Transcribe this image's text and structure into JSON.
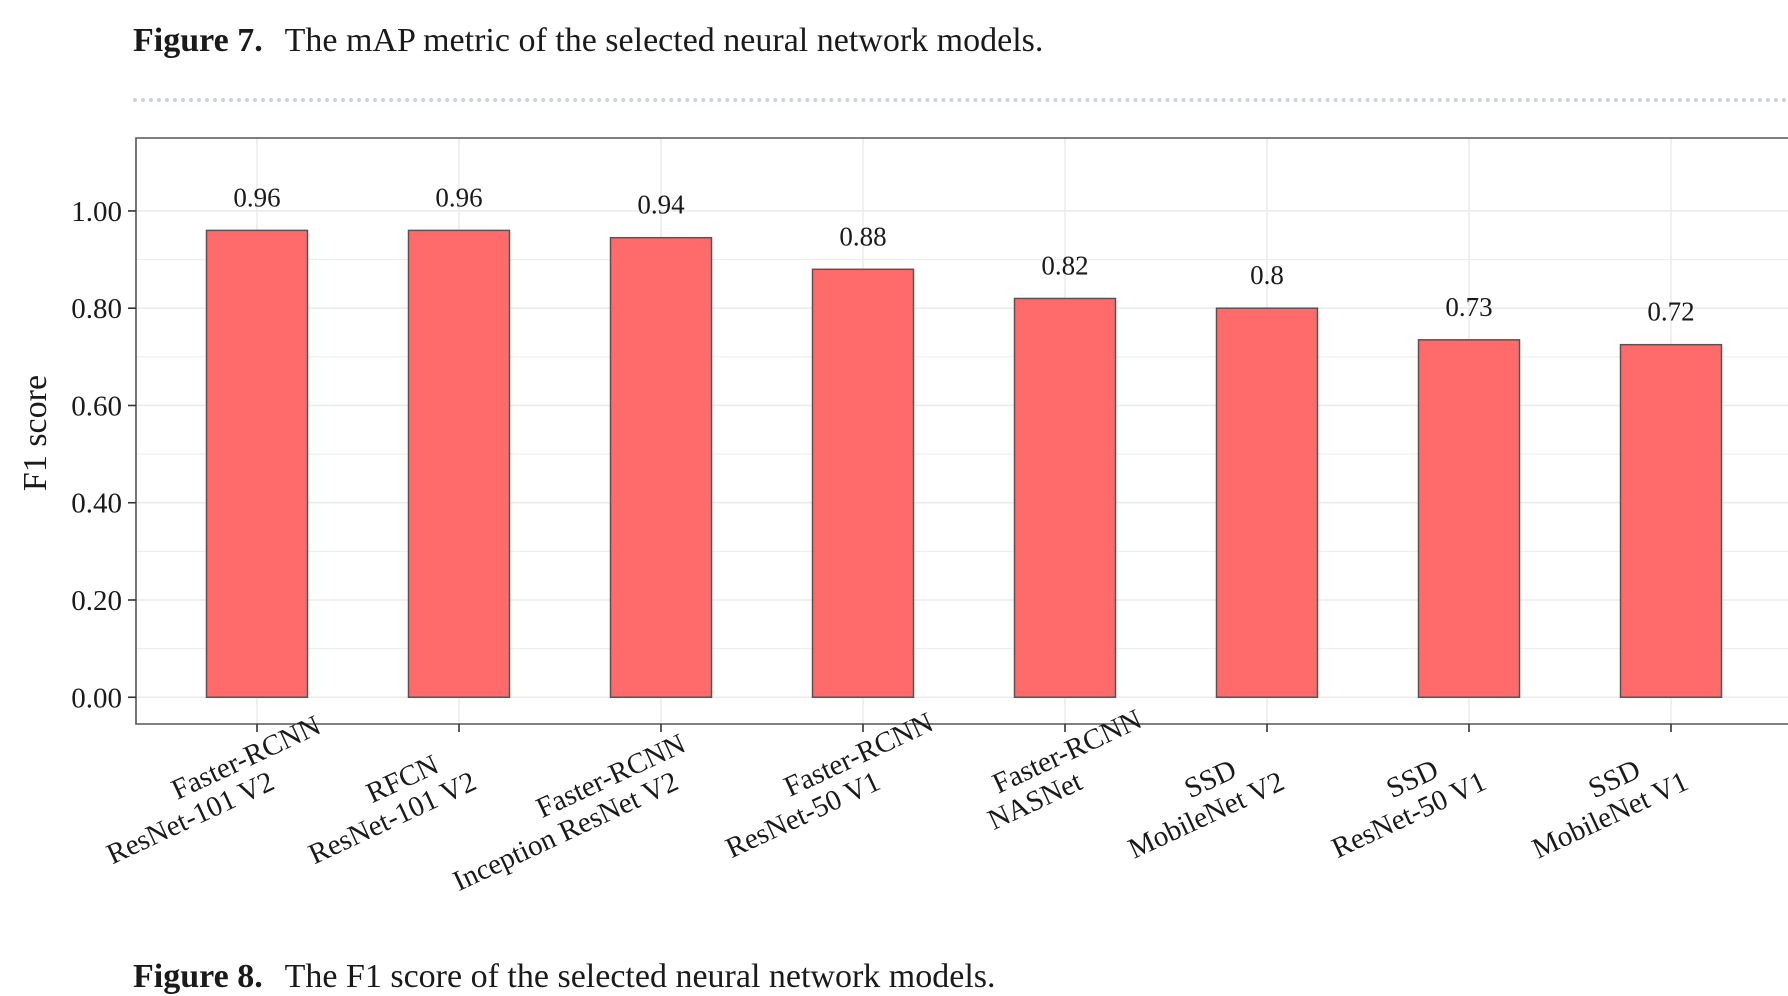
{
  "figure_caption": {
    "label": "Figure 7.",
    "text": "The mAP metric of the selected neural network models."
  },
  "next_caption": {
    "label": "Figure 8.",
    "text": "The F1 score of the selected neural network models."
  },
  "colors": {
    "bar_fill": "#ff6b6b",
    "bar_stroke": "#555555",
    "grid": "#ebebeb",
    "panel_border": "#555555",
    "divider": "#c9d3d8"
  },
  "chart_data": {
    "type": "bar",
    "ylabel": "F1 score",
    "xlabel": "",
    "ylim": [
      -0.055,
      1.15
    ],
    "yticks": [
      0.0,
      0.2,
      0.4,
      0.6,
      0.8,
      1.0
    ],
    "ytick_labels": [
      "0.00",
      "0.20",
      "0.40",
      "0.60",
      "0.80",
      "1.00"
    ],
    "grid": true,
    "legend": "none",
    "categories": [
      [
        "Faster-RCNN",
        "ResNet-101 V2"
      ],
      [
        "RFCN",
        "ResNet-101 V2"
      ],
      [
        "Faster-RCNN",
        "Inception ResNet V2"
      ],
      [
        "Faster-RCNN",
        "ResNet-50 V1"
      ],
      [
        "Faster-RCNN",
        "NASNet"
      ],
      [
        "SSD",
        "MobileNet V2"
      ],
      [
        "SSD",
        "ResNet-50 V1"
      ],
      [
        "SSD",
        "MobileNet V1"
      ]
    ],
    "values": [
      0.96,
      0.96,
      0.945,
      0.88,
      0.82,
      0.8,
      0.735,
      0.725
    ],
    "value_labels": [
      "0.96",
      "0.96",
      "0.94",
      "0.88",
      "0.82",
      "0.8",
      "0.73",
      "0.72"
    ]
  }
}
